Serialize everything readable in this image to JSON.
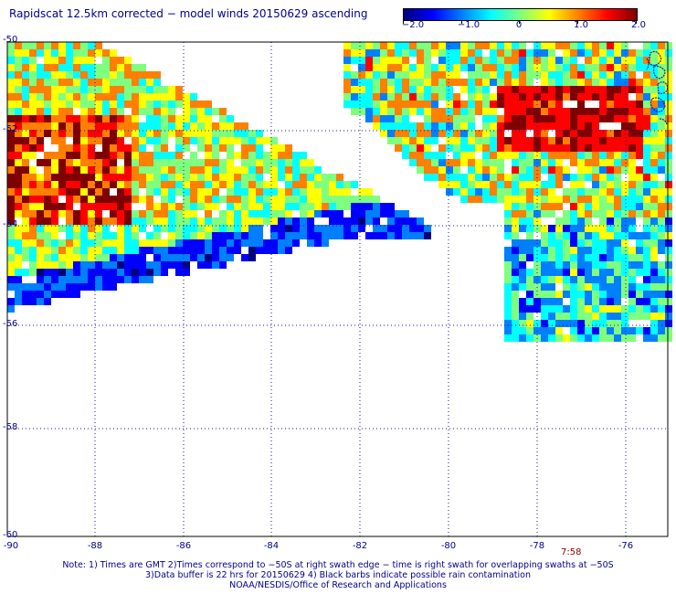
{
  "title": "Rapidscat 12.5km corrected − model winds 20150629 ascending",
  "colorbar": {
    "labels": [
      "−2.0",
      "−1.0",
      "0",
      "1.0",
      "2.0"
    ],
    "values": [
      -2.0,
      -1.0,
      0,
      1.0,
      2.0
    ],
    "colors": [
      "#00007f",
      "#0000ff",
      "#007fff",
      "#00ffff",
      "#7fff7f",
      "#ffff00",
      "#ff7f00",
      "#ff0000",
      "#7f0000"
    ]
  },
  "map": {
    "lat_labels": [
      "-50",
      "-52",
      "-54",
      "-56",
      "-58",
      "-60"
    ],
    "lon_labels": [
      "-90",
      "-88",
      "-86",
      "-84",
      "-82",
      "-80",
      "-78",
      "-76"
    ],
    "lat_range": [
      -60,
      -50
    ],
    "lon_range": [
      -90,
      -75.2
    ],
    "time_label": "7:58",
    "grid": "dotted",
    "coastline_color": "#1e1e8c"
  },
  "notes": [
    "Note: 1) Times are GMT 2)Times correspond to −50S at right swath edge − time is right swath for overlapping swaths at −50S",
    "3)Data buffer is 22 hrs for 20150629 4) Black barbs indicate possible rain contamination",
    "NOAA/NESDIS/Office of Research and Applications"
  ]
}
